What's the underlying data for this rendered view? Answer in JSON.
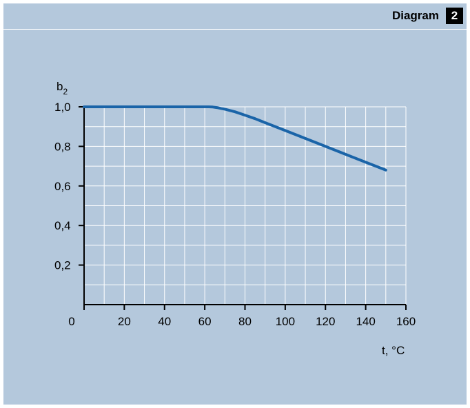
{
  "header": {
    "title": "Diagram",
    "badge": "2"
  },
  "chart_data": {
    "type": "line",
    "title": "",
    "ylabel_base": "b",
    "ylabel_sub": "2",
    "xlabel": "t, °C",
    "xlim": [
      0,
      160
    ],
    "ylim": [
      0,
      1.0
    ],
    "x_ticks": [
      "0",
      "20",
      "40",
      "60",
      "80",
      "100",
      "120",
      "140",
      "160"
    ],
    "y_ticks": [
      "1,0",
      "0,8",
      "0,6",
      "0,4",
      "0,2"
    ],
    "grid": true,
    "line_color": "#1a64a8",
    "series": [
      {
        "x": [
          0,
          62,
          64,
          66,
          68,
          70,
          72,
          75,
          80,
          85,
          90,
          100,
          110,
          120,
          130,
          140,
          150
        ],
        "y": [
          1.0,
          1.0,
          0.999,
          0.996,
          0.992,
          0.988,
          0.983,
          0.975,
          0.958,
          0.94,
          0.92,
          0.88,
          0.84,
          0.8,
          0.76,
          0.72,
          0.68
        ]
      }
    ]
  }
}
